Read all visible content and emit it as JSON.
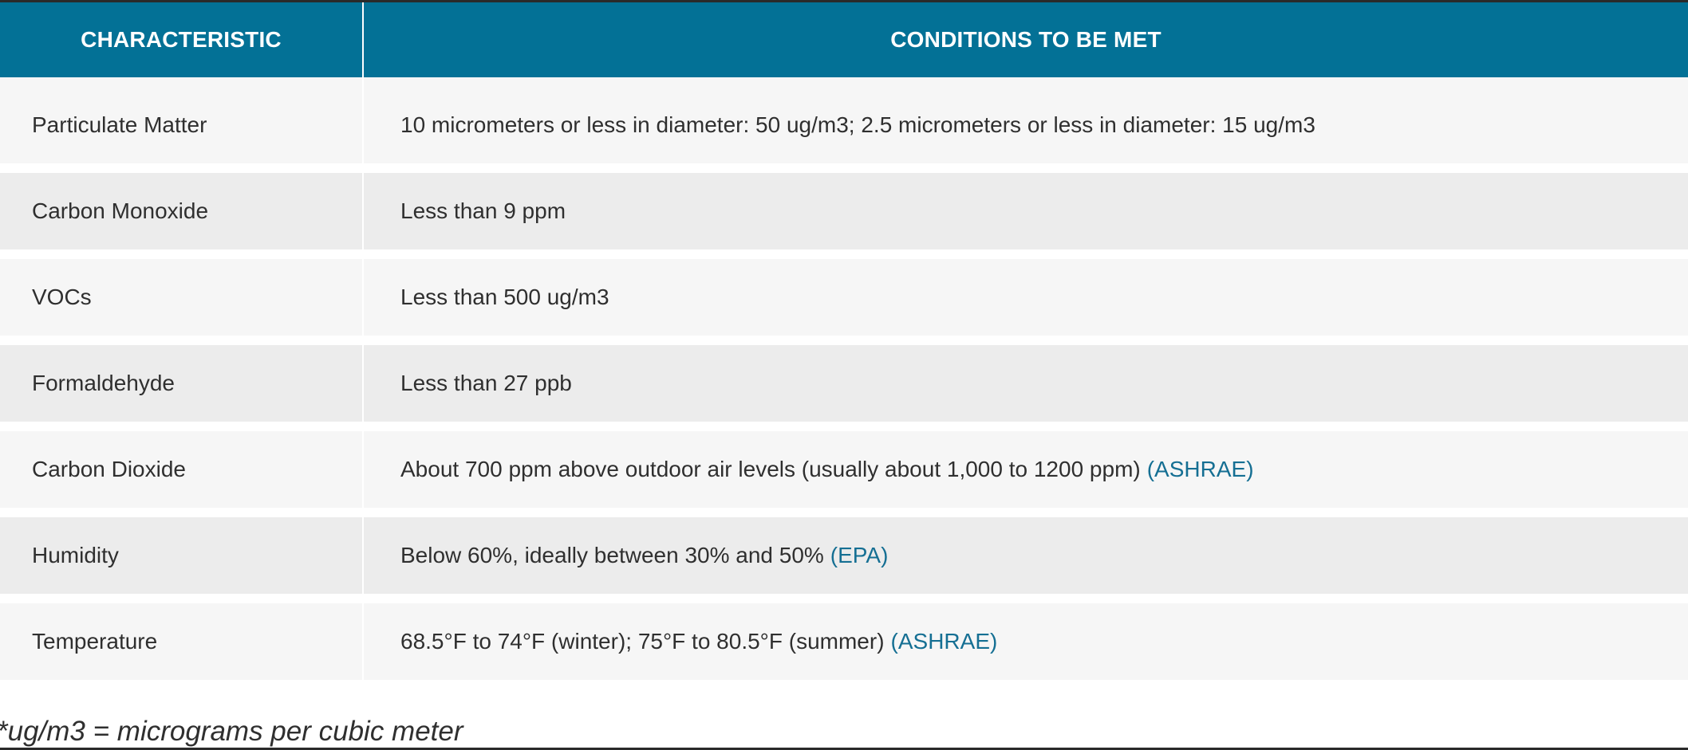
{
  "table": {
    "headers": [
      "CHARACTERISTIC",
      "CONDITIONS TO BE MET"
    ],
    "rows": [
      {
        "characteristic": "Particulate Matter",
        "condition": "10 micrometers or less in diameter: 50 ug/m3; 2.5 micrometers or less in diameter: 15 ug/m3",
        "source": ""
      },
      {
        "characteristic": "Carbon Monoxide",
        "condition": "Less than 9 ppm",
        "source": ""
      },
      {
        "characteristic": "VOCs",
        "condition": "Less than 500 ug/m3",
        "source": ""
      },
      {
        "characteristic": "Formaldehyde",
        "condition": "Less than 27 ppb",
        "source": ""
      },
      {
        "characteristic": "Carbon Dioxide",
        "condition": "About 700 ppm above outdoor air levels (usually about 1,000 to 1200 ppm)",
        "source": "(ASHRAE)"
      },
      {
        "characteristic": "Humidity",
        "condition": "Below 60%, ideally between 30% and 50%",
        "source": "(EPA)"
      },
      {
        "characteristic": "Temperature",
        "condition": "68.5°F to 74°F (winter); 75°F to 80.5°F (summer)",
        "source": "(ASHRAE)"
      }
    ]
  },
  "footnote": "*ug/m3 = micrograms per cubic meter",
  "colors": {
    "header_bg": "#037196",
    "row_light": "#f6f6f6",
    "row_dark": "#ececec",
    "link": "#156f93"
  }
}
